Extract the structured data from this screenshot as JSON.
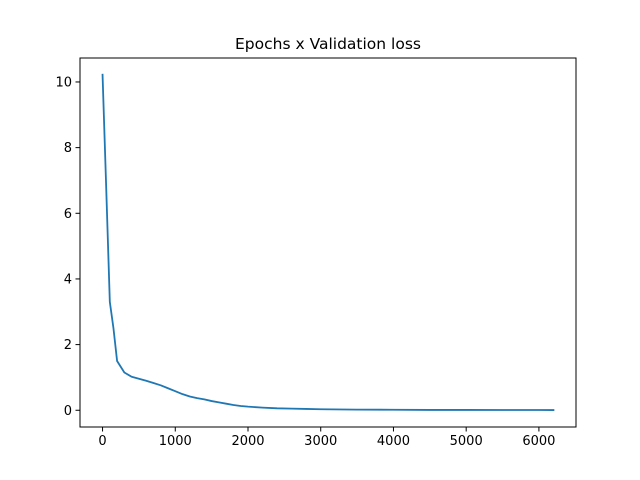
{
  "chart_data": {
    "type": "line",
    "title": "Epochs x Validation loss",
    "xlabel": "",
    "ylabel": "",
    "xlim": [
      -310,
      6510
    ],
    "ylim": [
      -0.51,
      10.73
    ],
    "xticks": [
      0,
      1000,
      2000,
      3000,
      4000,
      5000,
      6000
    ],
    "yticks": [
      0,
      2,
      4,
      6,
      8,
      10
    ],
    "grid": false,
    "legend": "none",
    "color": "#1f77b4",
    "series": [
      {
        "name": "validation loss",
        "x": [
          0,
          50,
          100,
          150,
          200,
          300,
          400,
          500,
          600,
          700,
          800,
          900,
          1000,
          1100,
          1200,
          1300,
          1400,
          1500,
          1600,
          1700,
          1800,
          1900,
          2000,
          2200,
          2400,
          2600,
          2800,
          3000,
          3500,
          4000,
          4500,
          5000,
          5500,
          6000,
          6200
        ],
        "y": [
          10.22,
          6.8,
          3.3,
          2.5,
          1.5,
          1.15,
          1.02,
          0.96,
          0.9,
          0.83,
          0.76,
          0.67,
          0.58,
          0.49,
          0.42,
          0.37,
          0.33,
          0.28,
          0.24,
          0.2,
          0.16,
          0.13,
          0.11,
          0.08,
          0.06,
          0.05,
          0.04,
          0.03,
          0.02,
          0.015,
          0.01,
          0.01,
          0.008,
          0.007,
          0.006
        ]
      }
    ]
  }
}
